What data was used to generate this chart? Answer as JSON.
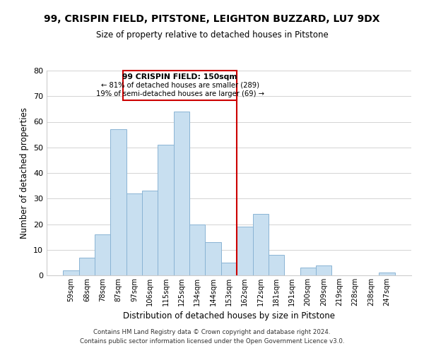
{
  "title": "99, CRISPIN FIELD, PITSTONE, LEIGHTON BUZZARD, LU7 9DX",
  "subtitle": "Size of property relative to detached houses in Pitstone",
  "xlabel": "Distribution of detached houses by size in Pitstone",
  "ylabel": "Number of detached properties",
  "footer_line1": "Contains HM Land Registry data © Crown copyright and database right 2024.",
  "footer_line2": "Contains public sector information licensed under the Open Government Licence v3.0.",
  "bin_labels": [
    "59sqm",
    "68sqm",
    "78sqm",
    "87sqm",
    "97sqm",
    "106sqm",
    "115sqm",
    "125sqm",
    "134sqm",
    "144sqm",
    "153sqm",
    "162sqm",
    "172sqm",
    "181sqm",
    "191sqm",
    "200sqm",
    "209sqm",
    "219sqm",
    "228sqm",
    "238sqm",
    "247sqm"
  ],
  "bar_heights": [
    2,
    7,
    16,
    57,
    32,
    33,
    51,
    64,
    20,
    13,
    5,
    19,
    24,
    8,
    0,
    3,
    4,
    0,
    0,
    0,
    1
  ],
  "bar_color": "#c8dff0",
  "bar_edge_color": "#8ab4d4",
  "vline_x": 10.5,
  "vline_color": "#cc0000",
  "annotation_title": "99 CRISPIN FIELD: 150sqm",
  "annotation_line1": "← 81% of detached houses are smaller (289)",
  "annotation_line2": "19% of semi-detached houses are larger (69) →",
  "annotation_box_color": "#cc0000",
  "ylim": [
    0,
    80
  ],
  "yticks": [
    0,
    10,
    20,
    30,
    40,
    50,
    60,
    70,
    80
  ]
}
